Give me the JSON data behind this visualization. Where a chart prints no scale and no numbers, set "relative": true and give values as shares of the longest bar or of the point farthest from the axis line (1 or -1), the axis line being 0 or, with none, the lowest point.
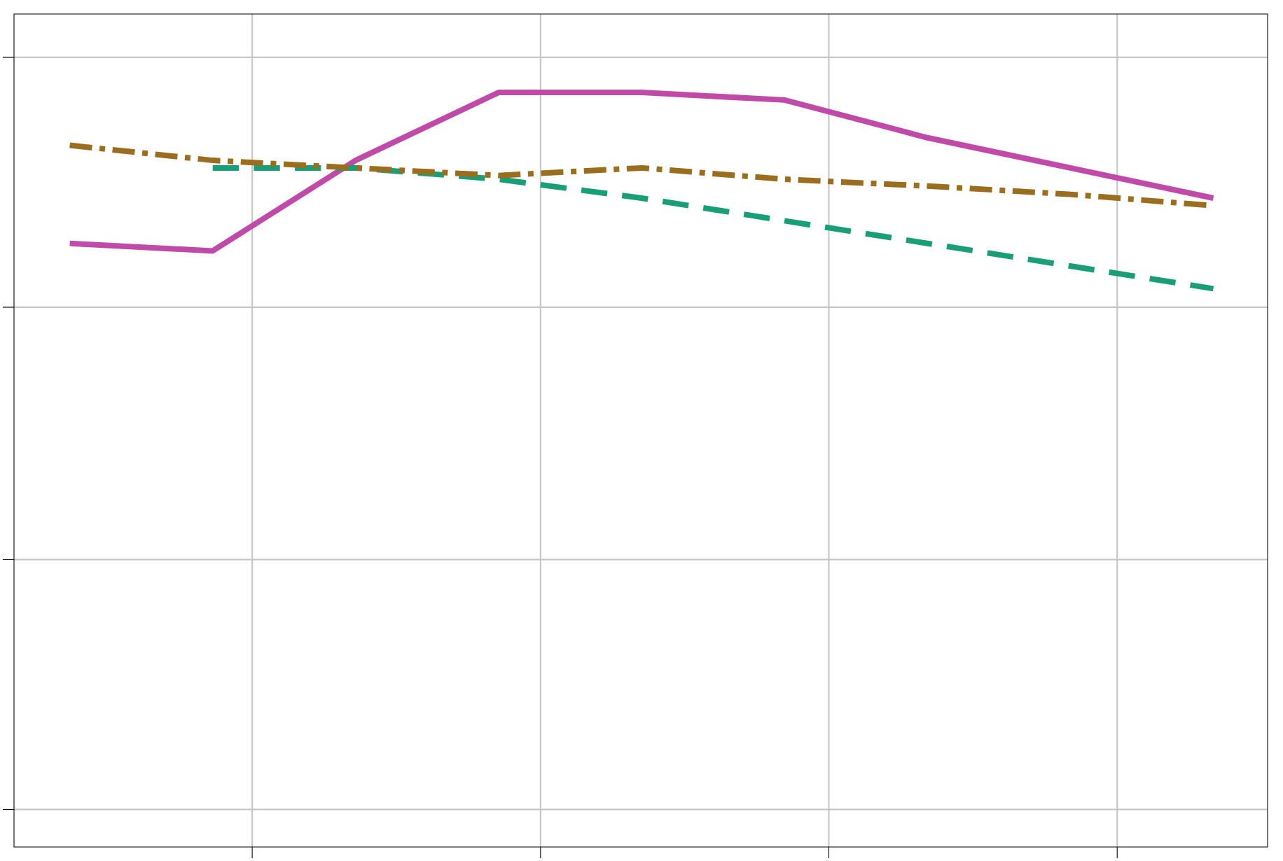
{
  "chart_data": {
    "type": "line",
    "relative": true,
    "grid": true,
    "categories": [
      null,
      null,
      null,
      null,
      null,
      null,
      null,
      null,
      null
    ],
    "series": [
      {
        "color": "#c04aa8",
        "line_style": "solid",
        "values": [
          0.8,
          0.79,
          0.91,
          1,
          1,
          0.99,
          0.94,
          0.9,
          0.86
        ]
      },
      {
        "color": "#1a9e77",
        "line_style": "dashed",
        "values": [
          null,
          0.9,
          0.9,
          0.885,
          0.86,
          0.83,
          0.8,
          0.77,
          0.74
        ]
      },
      {
        "color": "#9a6e1e",
        "line_style": "dashdot",
        "values": [
          0.93,
          0.91,
          0.9,
          0.89,
          0.9,
          0.885,
          0.876,
          0.865,
          0.85
        ]
      }
    ]
  }
}
